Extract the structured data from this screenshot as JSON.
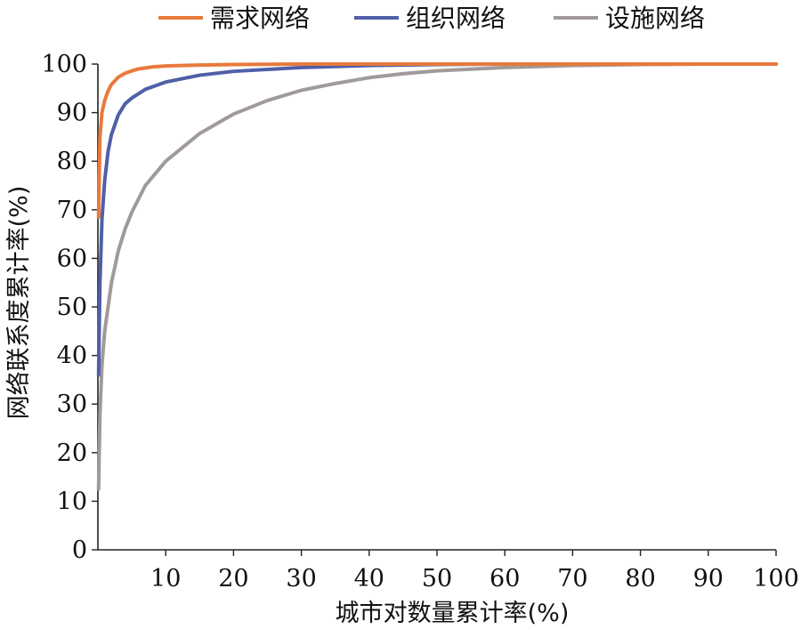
{
  "chart_data": {
    "type": "line",
    "title": "",
    "xlabel": "城市对数量累计率(%)",
    "ylabel": "网络联系度累计率(%)",
    "xlim": [
      0,
      100
    ],
    "ylim": [
      0,
      100
    ],
    "xticks": [
      10,
      20,
      30,
      40,
      50,
      60,
      70,
      80,
      90,
      100
    ],
    "yticks": [
      0,
      10,
      20,
      30,
      40,
      50,
      60,
      70,
      80,
      90,
      100
    ],
    "grid": false,
    "legend_position": "top",
    "series": [
      {
        "name": "需求网络",
        "color": "#E87A3C",
        "x": [
          0.1,
          0.3,
          0.6,
          1,
          1.5,
          2,
          3,
          4,
          5,
          6,
          8,
          10,
          15,
          20,
          30,
          40,
          60,
          80,
          100
        ],
        "y": [
          68.5,
          85,
          90,
          92.5,
          94.5,
          95.8,
          97.3,
          98.1,
          98.6,
          99,
          99.4,
          99.6,
          99.8,
          99.9,
          100,
          100,
          100,
          100,
          100
        ]
      },
      {
        "name": "组织网络",
        "color": "#4F5FA8",
        "x": [
          0.1,
          0.3,
          0.6,
          1,
          1.5,
          2,
          3,
          4,
          5,
          7,
          10,
          15,
          20,
          30,
          40,
          50,
          60,
          80,
          100
        ],
        "y": [
          36,
          55,
          68,
          76,
          82,
          85.5,
          89.5,
          91.8,
          93,
          94.8,
          96.3,
          97.7,
          98.5,
          99.3,
          99.7,
          99.9,
          100,
          100,
          100
        ]
      },
      {
        "name": "设施网络",
        "color": "#A09A98",
        "x": [
          0.1,
          0.3,
          0.6,
          1,
          2,
          3,
          4,
          5,
          7,
          10,
          15,
          20,
          25,
          30,
          35,
          40,
          45,
          50,
          60,
          70,
          80,
          90,
          100
        ],
        "y": [
          12.5,
          28,
          38,
          45,
          55,
          61.5,
          66,
          69.5,
          75,
          80,
          85.7,
          89.7,
          92.5,
          94.6,
          96,
          97.2,
          98,
          98.6,
          99.3,
          99.7,
          99.9,
          100,
          100
        ]
      }
    ]
  }
}
